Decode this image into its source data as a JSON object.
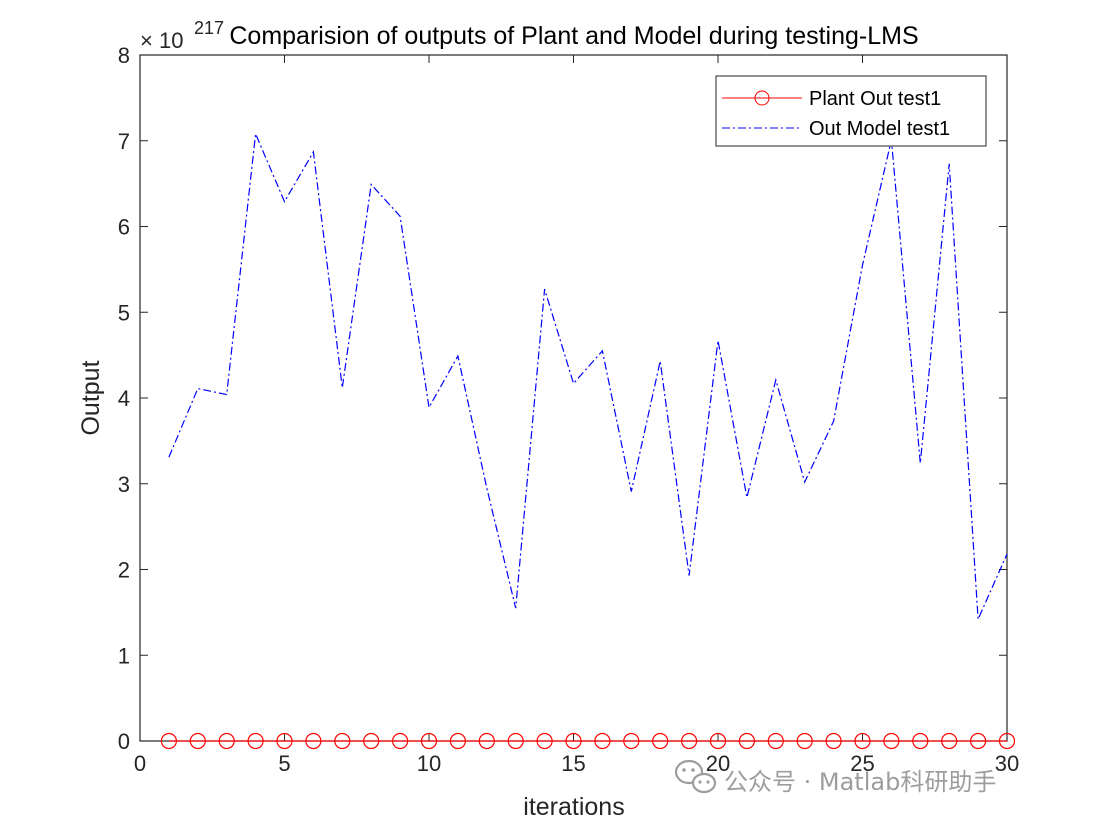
{
  "chart_data": {
    "type": "line",
    "title": "Comparision of outputs of Plant and Model during testing-LMS",
    "xlabel": "iterations",
    "ylabel": "Output",
    "xlim": [
      0,
      30
    ],
    "ylim": [
      0,
      8
    ],
    "y_exponent_prefix": "× 10",
    "y_exponent_power": "217",
    "xticks": [
      0,
      5,
      10,
      15,
      20,
      25,
      30
    ],
    "yticks": [
      0,
      1,
      2,
      3,
      4,
      5,
      6,
      7,
      8
    ],
    "legend_placement": "top-right",
    "grid": false,
    "series": [
      {
        "name": "Plant Out test1",
        "color": "#ff0000",
        "style": "solid",
        "marker": "circle",
        "x": [
          1,
          2,
          3,
          4,
          5,
          6,
          7,
          8,
          9,
          10,
          11,
          12,
          13,
          14,
          15,
          16,
          17,
          18,
          19,
          20,
          21,
          22,
          23,
          24,
          25,
          26,
          27,
          28,
          29,
          30
        ],
        "values": [
          0,
          0,
          0,
          0,
          0,
          0,
          0,
          0,
          0,
          0,
          0,
          0,
          0,
          0,
          0,
          0,
          0,
          0,
          0,
          0,
          0,
          0,
          0,
          0,
          0,
          0,
          0,
          0,
          0,
          0
        ]
      },
      {
        "name": "Out Model test1",
        "color": "#0000ff",
        "style": "dashdot",
        "marker": "none",
        "x": [
          1,
          2,
          3,
          4,
          5,
          6,
          7,
          8,
          9,
          10,
          11,
          12,
          13,
          14,
          15,
          16,
          17,
          18,
          19,
          20,
          21,
          22,
          23,
          24,
          25,
          26,
          27,
          28,
          29,
          30
        ],
        "values": [
          3.31,
          4.11,
          4.04,
          7.08,
          6.29,
          6.87,
          4.12,
          6.49,
          6.12,
          3.89,
          4.49,
          2.95,
          1.55,
          5.27,
          4.17,
          4.55,
          2.91,
          4.43,
          1.93,
          4.67,
          2.84,
          4.21,
          3.02,
          3.73,
          5.55,
          7.01,
          3.24,
          6.73,
          1.42,
          2.18
        ]
      }
    ]
  },
  "watermark": {
    "icon": "wechat-icon",
    "text": "公众号 · Matlab科研助手"
  }
}
